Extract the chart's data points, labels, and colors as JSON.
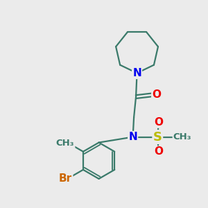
{
  "background_color": "#ebebeb",
  "bond_color": "#3a7a6a",
  "bond_width": 1.6,
  "atom_colors": {
    "N": "#0000ee",
    "O": "#ee0000",
    "S": "#bbbb00",
    "Br": "#cc6600",
    "C": "#3a7a6a"
  },
  "font_size_atom": 11,
  "font_size_label": 9.5
}
